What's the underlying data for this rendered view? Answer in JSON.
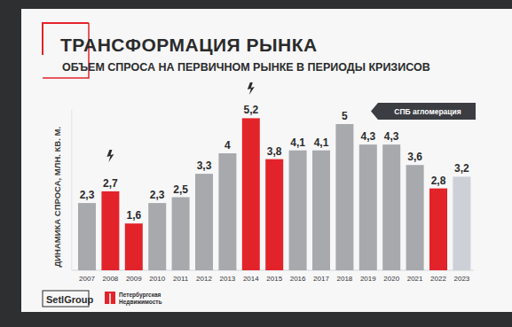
{
  "chart_data": {
    "type": "bar",
    "title": "ТРАНСФОРМАЦИЯ РЫНКА",
    "subtitle": "ОБЪЕМ СПРОСА НА ПЕРВИЧНОМ РЫНКЕ В ПЕРИОДЫ КРИЗИСОВ",
    "y_label": "ДИНАМИКА СПРОСА, МЛН. КВ. М.",
    "annotations": [
      "СПБ агломерация",
      "SetlGroup",
      "Петербургская",
      "Недвижимость"
    ],
    "categories": [
      "2007",
      "2008",
      "2009",
      "2010",
      "2011",
      "2012",
      "2013",
      "2014",
      "2015",
      "2016",
      "2017",
      "2018",
      "2019",
      "2020",
      "2021",
      "2022",
      "2023"
    ],
    "values": [
      2.3,
      2.7,
      1.6,
      2.3,
      2.5,
      3.3,
      4,
      5.2,
      3.8,
      4.1,
      4.1,
      5,
      4.3,
      4.3,
      3.6,
      2.8,
      3.2
    ],
    "value_labels": [
      "2,3",
      "2,7",
      "1,6",
      "2,3",
      "2,5",
      "3,3",
      "4",
      "5,2",
      "3,8",
      "4,1",
      "4,1",
      "5",
      "4,3",
      "4,3",
      "3,6",
      "2,8",
      "3,2"
    ],
    "colors": [
      "#a7a9ad",
      "#e3232a",
      "#e3232a",
      "#a7a9ad",
      "#a7a9ad",
      "#a7a9ad",
      "#a7a9ad",
      "#e3232a",
      "#e3232a",
      "#a7a9ad",
      "#a7a9ad",
      "#a7a9ad",
      "#a7a9ad",
      "#a7a9ad",
      "#a7a9ad",
      "#e3232a",
      "#cdd0d6"
    ],
    "ylim": [
      0,
      5.5
    ],
    "data_labels": true,
    "tick_labels": "x",
    "grid": false
  }
}
